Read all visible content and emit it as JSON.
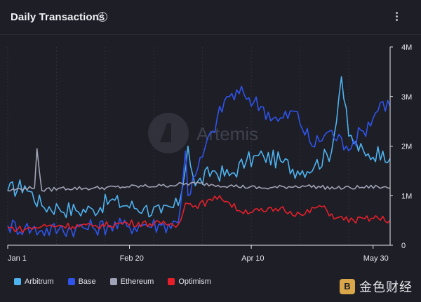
{
  "title": "Daily Transactions",
  "icons": {
    "info": "info-icon",
    "menu": "kebab-menu-icon"
  },
  "watermark_logo_text": "Artemis",
  "corner_watermark_text": "金色财经",
  "chart_data": {
    "type": "line",
    "title": "Daily Transactions",
    "x_range": [
      "2024-01-01",
      "2024-06-06"
    ],
    "ylim": [
      0,
      4000000
    ],
    "y_ticks": [
      "0",
      "1M",
      "2M",
      "3M",
      "4M"
    ],
    "x_ticks": [
      "Jan 1",
      "Feb 20",
      "Apr 10",
      "May 30"
    ],
    "grid": "vertical",
    "legend": "bottom-left",
    "series": [
      {
        "name": "Arbitrum",
        "color": "#4fb3f0",
        "x": [
          "2024-01-01",
          "2024-01-08",
          "2024-01-15",
          "2024-01-22",
          "2024-01-29",
          "2024-02-05",
          "2024-02-12",
          "2024-02-19",
          "2024-02-26",
          "2024-03-04",
          "2024-03-11",
          "2024-03-14",
          "2024-03-15",
          "2024-03-18",
          "2024-03-25",
          "2024-04-01",
          "2024-04-08",
          "2024-04-15",
          "2024-04-22",
          "2024-04-29",
          "2024-05-06",
          "2024-05-13",
          "2024-05-17",
          "2024-05-20",
          "2024-05-27",
          "2024-06-03",
          "2024-06-06"
        ],
        "values": [
          1100000,
          1200000,
          800000,
          750000,
          700000,
          720000,
          900000,
          800000,
          750000,
          650000,
          800000,
          1550000,
          2000000,
          1200000,
          1500000,
          1400000,
          1700000,
          1800000,
          1700000,
          1500000,
          1600000,
          1900000,
          3400000,
          2200000,
          1800000,
          1900000,
          1750000
        ]
      },
      {
        "name": "Base",
        "color": "#2f54eb",
        "x": [
          "2024-01-01",
          "2024-01-08",
          "2024-01-15",
          "2024-01-22",
          "2024-01-29",
          "2024-02-05",
          "2024-02-12",
          "2024-02-19",
          "2024-02-26",
          "2024-03-04",
          "2024-03-11",
          "2024-03-14",
          "2024-03-15",
          "2024-03-18",
          "2024-03-25",
          "2024-03-31",
          "2024-04-07",
          "2024-04-14",
          "2024-04-21",
          "2024-04-28",
          "2024-05-05",
          "2024-05-12",
          "2024-05-19",
          "2024-05-26",
          "2024-06-03",
          "2024-06-06"
        ],
        "values": [
          400000,
          350000,
          300000,
          320000,
          350000,
          350000,
          400000,
          380000,
          420000,
          400000,
          450000,
          1900000,
          1000000,
          1400000,
          2300000,
          3000000,
          3050000,
          2800000,
          2500000,
          2700000,
          2000000,
          2300000,
          2000000,
          2300000,
          2900000,
          2800000
        ]
      },
      {
        "name": "Ethereum",
        "color": "#a0a3b5",
        "x": [
          "2024-01-01",
          "2024-01-08",
          "2024-01-12",
          "2024-01-13",
          "2024-01-15",
          "2024-01-22",
          "2024-02-05",
          "2024-02-19",
          "2024-03-04",
          "2024-03-18",
          "2024-04-01",
          "2024-04-15",
          "2024-05-01",
          "2024-05-15",
          "2024-06-01",
          "2024-06-06"
        ],
        "values": [
          1100000,
          1150000,
          1150000,
          1950000,
          1100000,
          1150000,
          1150000,
          1180000,
          1200000,
          1250000,
          1200000,
          1150000,
          1200000,
          1150000,
          1180000,
          1150000
        ]
      },
      {
        "name": "Optimism",
        "color": "#e5202a",
        "x": [
          "2024-01-01",
          "2024-01-08",
          "2024-01-15",
          "2024-01-22",
          "2024-02-05",
          "2024-02-19",
          "2024-03-04",
          "2024-03-11",
          "2024-03-14",
          "2024-03-18",
          "2024-03-25",
          "2024-03-28",
          "2024-04-05",
          "2024-04-15",
          "2024-04-22",
          "2024-05-01",
          "2024-05-08",
          "2024-05-15",
          "2024-05-22",
          "2024-06-01",
          "2024-06-06"
        ],
        "values": [
          350000,
          320000,
          380000,
          400000,
          380000,
          450000,
          430000,
          420000,
          850000,
          800000,
          900000,
          1000000,
          700000,
          680000,
          750000,
          600000,
          800000,
          550000,
          500000,
          550000,
          500000
        ]
      }
    ]
  }
}
